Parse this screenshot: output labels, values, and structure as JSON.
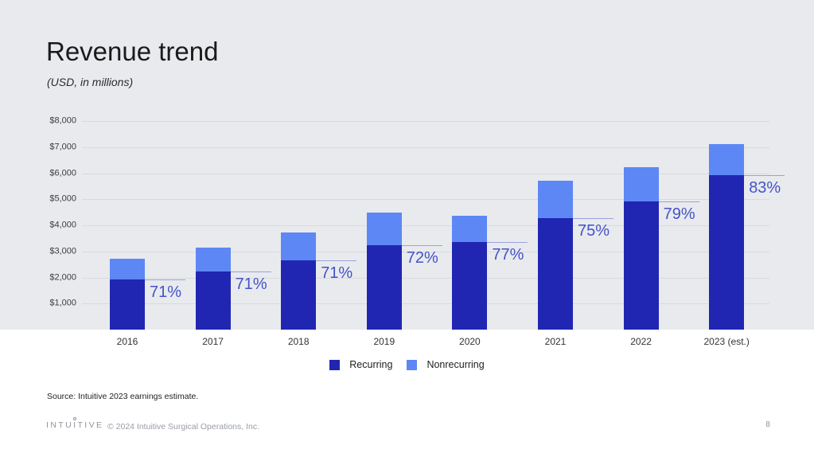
{
  "slide": {
    "title": "Revenue trend",
    "subtitle": "(USD, in millions)",
    "source_note": "Source: Intuitive 2023 earnings estimate.",
    "footer": {
      "logo_part1": "INTU",
      "logo_i": "I",
      "logo_part2": "TIVE",
      "copyright": "© 2024 Intuitive Surgical Operations, Inc.",
      "page_number": "8"
    }
  },
  "colors": {
    "background": "#e9eaee",
    "recurring": "#2026b2",
    "nonrecurring": "#5d87f5",
    "pct_text": "#4453c8",
    "pct_line": "#9aa3dd",
    "gridline": "#d8dade"
  },
  "chart_data": {
    "type": "bar",
    "stacked": true,
    "title": "Revenue trend",
    "subtitle": "(USD, in millions)",
    "categories": [
      "2016",
      "2017",
      "2018",
      "2019",
      "2020",
      "2021",
      "2022",
      "2023 (est.)"
    ],
    "series": [
      {
        "name": "Recurring",
        "color": "#2026b2",
        "values": [
          1920,
          2229,
          2644,
          3225,
          3356,
          4283,
          4915,
          5913
        ]
      },
      {
        "name": "Nonrecurring",
        "color": "#5d87f5",
        "values": [
          784,
          910,
          1080,
          1254,
          1002,
          1427,
          1307,
          1211
        ]
      }
    ],
    "totals": [
      2704,
      3139,
      3724,
      4479,
      4358,
      5710,
      6222,
      7124
    ],
    "recurring_pct_labels": [
      "71%",
      "71%",
      "71%",
      "72%",
      "77%",
      "75%",
      "79%",
      "83%"
    ],
    "y_axis": {
      "tick_labels": [
        "$1,000",
        "$2,000",
        "$3,000",
        "$4,000",
        "$5,000",
        "$6,000",
        "$7,000",
        "$8,000"
      ],
      "tick_values": [
        1000,
        2000,
        3000,
        4000,
        5000,
        6000,
        7000,
        8000
      ],
      "max": 8000,
      "grid": true
    },
    "legend": [
      "Recurring",
      "Nonrecurring"
    ],
    "legend_position": "bottom"
  }
}
